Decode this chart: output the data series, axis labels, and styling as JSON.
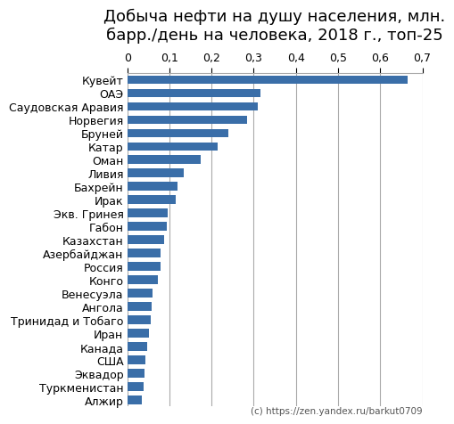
{
  "title": "Добыча нефти на душу населения, млн.\nбарр./день на человека, 2018 г., топ-25",
  "categories": [
    "Кувейт",
    "ОАЭ",
    "Саудовская Аравия",
    "Норвегия",
    "Бруней",
    "Катар",
    "Оман",
    "Ливия",
    "Бахрейн",
    "Ирак",
    "Экв. Гринея",
    "Габон",
    "Казахстан",
    "Азербайджан",
    "Россия",
    "Конго",
    "Венесуэла",
    "Ангола",
    "Тринидад и Тобаго",
    "Иран",
    "Канада",
    "США",
    "Эквадор",
    "Туркменистан",
    "Алжир"
  ],
  "values": [
    0.665,
    0.315,
    0.31,
    0.285,
    0.24,
    0.215,
    0.175,
    0.135,
    0.12,
    0.115,
    0.095,
    0.093,
    0.088,
    0.08,
    0.078,
    0.072,
    0.06,
    0.058,
    0.056,
    0.052,
    0.047,
    0.044,
    0.04,
    0.038,
    0.035
  ],
  "bar_color": "#3A6EA8",
  "xlim": [
    0,
    0.7
  ],
  "xticks": [
    0,
    0.1,
    0.2,
    0.3,
    0.4,
    0.5,
    0.6,
    0.7
  ],
  "xtick_labels": [
    "0",
    "0,1",
    "0,2",
    "0,3",
    "0,4",
    "0,5",
    "0,6",
    "0,7"
  ],
  "grid_color": "#AAAAAA",
  "background_color": "#FFFFFF",
  "watermark": "(c) https://zen.yandex.ru/barkut0709",
  "title_fontsize": 13,
  "label_fontsize": 9,
  "tick_fontsize": 9
}
